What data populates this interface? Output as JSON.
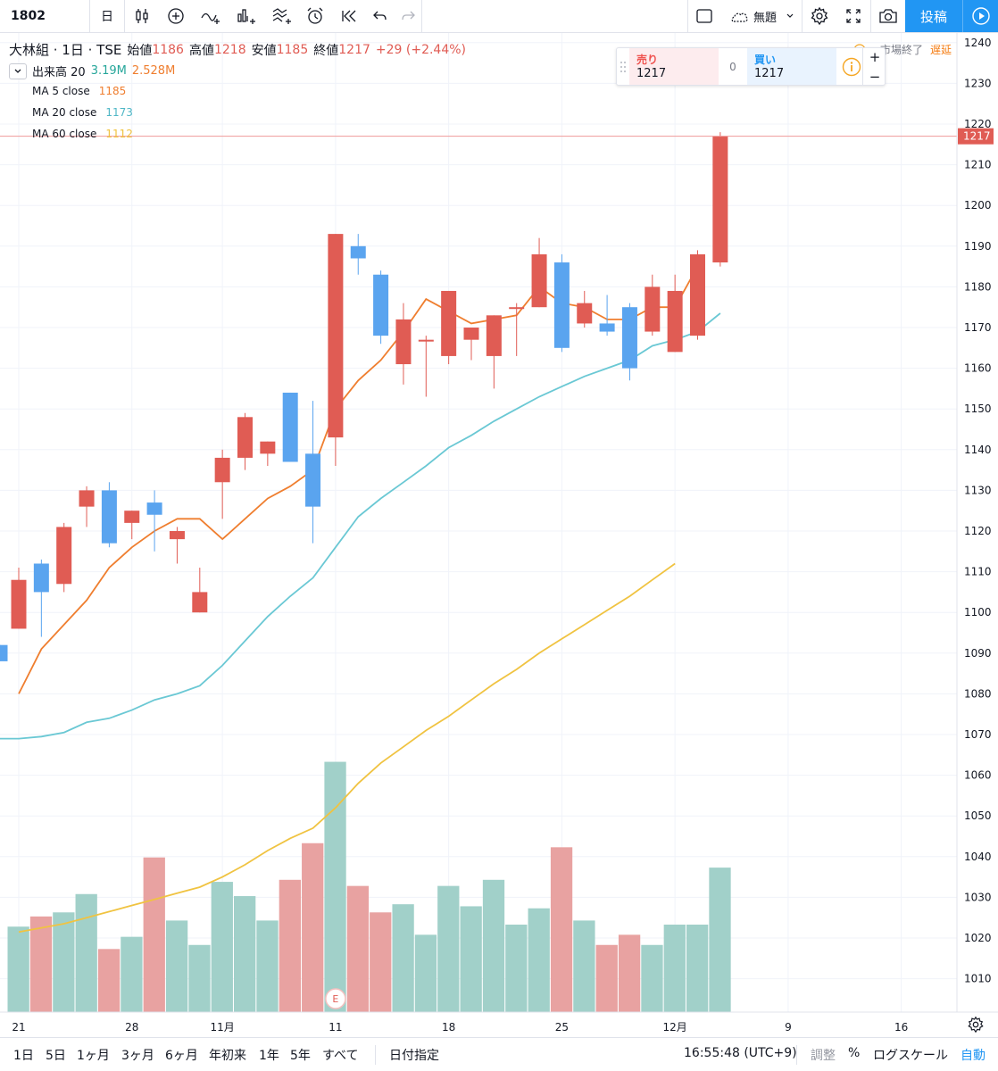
{
  "toolbar": {
    "symbol": "1802",
    "interval": "日",
    "cloud_label": "無題",
    "post_label": "投稿"
  },
  "legend": {
    "title": "大林組 · 1日 · TSE",
    "open_label": "始値",
    "open_value": "1186",
    "high_label": "高値",
    "high_value": "1218",
    "low_label": "安値",
    "low_value": "1185",
    "close_label": "終値",
    "close_value": "1217",
    "change": "+29 (+2.44%)",
    "volume_label": "出来高 20",
    "volume_value": "3.19M",
    "volume_ma": "2.528M",
    "ma5_label": "MA 5 close",
    "ma5_value": "1185",
    "ma20_label": "MA 20 close",
    "ma20_value": "1173",
    "ma60_label": "MA 60 close",
    "ma60_value": "1112"
  },
  "market_status": {
    "closed_label": "市場終了",
    "delayed_label": "遅延"
  },
  "trade": {
    "sell_label": "売り",
    "sell_value": "1217",
    "spread": "0",
    "buy_label": "買い",
    "buy_value": "1217",
    "plus": "+",
    "minus": "−"
  },
  "colors": {
    "up": "#e05c54",
    "down": "#5aa4ef",
    "ma5": "#ef7e2f",
    "ma20": "#6ac8d4",
    "ma60": "#f0c341",
    "vol_up": "#e8a2a1",
    "vol_down": "#a1d0c9"
  },
  "bottom": {
    "ranges": [
      "1日",
      "5日",
      "1ヶ月",
      "3ヶ月",
      "6ヶ月",
      "年初来",
      "1年",
      "5年",
      "すべて"
    ],
    "date_select": "日付指定",
    "time": "16:55:48 (UTC+9)",
    "adjust": "調整",
    "percent": "%",
    "log": "ログスケール",
    "auto": "自動"
  },
  "chart_data": {
    "type": "candlestick",
    "y_axis": {
      "ticks": [
        1010,
        1020,
        1030,
        1040,
        1050,
        1060,
        1070,
        1080,
        1090,
        1100,
        1110,
        1120,
        1130,
        1140,
        1150,
        1160,
        1170,
        1180,
        1190,
        1200,
        1210,
        1220,
        1230,
        1240
      ],
      "range": [
        1003,
        1244
      ],
      "last_price": 1217
    },
    "x_axis": {
      "ticks": [
        {
          "label": "21",
          "index": 0
        },
        {
          "label": "28",
          "index": 5
        },
        {
          "label": "11月",
          "index": 9
        },
        {
          "label": "11",
          "index": 14
        },
        {
          "label": "18",
          "index": 19
        },
        {
          "label": "25",
          "index": 24
        },
        {
          "label": "12月",
          "index": 29
        },
        {
          "label": "9",
          "index": 34
        },
        {
          "label": "16",
          "index": 39
        }
      ]
    },
    "candles": [
      {
        "o": 1096,
        "h": 1111,
        "l": 1096,
        "c": 1108
      },
      {
        "o": 1112,
        "h": 1113,
        "l": 1094,
        "c": 1105
      },
      {
        "o": 1107,
        "h": 1122,
        "l": 1105,
        "c": 1121
      },
      {
        "o": 1126,
        "h": 1131,
        "l": 1121,
        "c": 1130
      },
      {
        "o": 1130,
        "h": 1132,
        "l": 1116,
        "c": 1117
      },
      {
        "o": 1122,
        "h": 1125,
        "l": 1118,
        "c": 1125
      },
      {
        "o": 1127,
        "h": 1130,
        "l": 1115,
        "c": 1124
      },
      {
        "o": 1118,
        "h": 1121,
        "l": 1112,
        "c": 1120
      },
      {
        "o": 1100,
        "h": 1111,
        "l": 1100,
        "c": 1105
      },
      {
        "o": 1132,
        "h": 1140,
        "l": 1123,
        "c": 1138
      },
      {
        "o": 1138,
        "h": 1149,
        "l": 1135,
        "c": 1148
      },
      {
        "o": 1139,
        "h": 1142,
        "l": 1136,
        "c": 1142
      },
      {
        "o": 1154,
        "h": 1154,
        "l": 1137,
        "c": 1137
      },
      {
        "o": 1139,
        "h": 1152,
        "l": 1117,
        "c": 1126
      },
      {
        "o": 1143,
        "h": 1193,
        "l": 1136,
        "c": 1193
      },
      {
        "o": 1190,
        "h": 1193,
        "l": 1183,
        "c": 1187
      },
      {
        "o": 1183,
        "h": 1184,
        "l": 1166,
        "c": 1168
      },
      {
        "o": 1161,
        "h": 1176,
        "l": 1156,
        "c": 1172
      },
      {
        "o": 1167,
        "h": 1168,
        "l": 1153,
        "c": 1167
      },
      {
        "o": 1163,
        "h": 1179,
        "l": 1161,
        "c": 1179
      },
      {
        "o": 1167,
        "h": 1170,
        "l": 1162,
        "c": 1170
      },
      {
        "o": 1163,
        "h": 1173,
        "l": 1155,
        "c": 1173
      },
      {
        "o": 1175,
        "h": 1176,
        "l": 1163,
        "c": 1175
      },
      {
        "o": 1175,
        "h": 1192,
        "l": 1175,
        "c": 1188
      },
      {
        "o": 1186,
        "h": 1188,
        "l": 1164,
        "c": 1165
      },
      {
        "o": 1171,
        "h": 1179,
        "l": 1170,
        "c": 1176
      },
      {
        "o": 1171,
        "h": 1178,
        "l": 1168,
        "c": 1169
      },
      {
        "o": 1175,
        "h": 1176,
        "l": 1157,
        "c": 1160
      },
      {
        "o": 1169,
        "h": 1183,
        "l": 1168,
        "c": 1180
      },
      {
        "o": 1164,
        "h": 1183,
        "l": 1164,
        "c": 1179
      },
      {
        "o": 1168,
        "h": 1189,
        "l": 1167,
        "c": 1188
      },
      {
        "o": 1186,
        "h": 1218,
        "l": 1185,
        "c": 1217
      }
    ],
    "partial_left_candle": {
      "o": 1092,
      "h": 1092,
      "l": 1088,
      "c": 1088
    },
    "ma5": [
      1080,
      1091,
      1097,
      1103,
      1111,
      1116,
      1120,
      1123,
      1123,
      1118,
      1123,
      1128,
      1131,
      1135,
      1150,
      1157,
      1162,
      1169,
      1177,
      1174,
      1171,
      1172,
      1173,
      1180,
      1176,
      1175,
      1172,
      1172,
      1175,
      1175,
      1185
    ],
    "ma20": [
      1069,
      1069,
      1069.5,
      1070.5,
      1073,
      1074,
      1076,
      1078.5,
      1080,
      1082,
      1087,
      1093,
      1099,
      1104,
      1108.5,
      1116,
      1123.5,
      1128,
      1132,
      1136,
      1140.5,
      1143.5,
      1147,
      1150,
      1153,
      1155.5,
      1158,
      1160,
      1162,
      1165.5,
      1167,
      1169,
      1173.5
    ],
    "ma60": [
      1021.5,
      1022.5,
      1023.5,
      1025,
      1026.5,
      1028,
      1029.5,
      1031,
      1032.5,
      1035,
      1038,
      1041.5,
      1044.5,
      1047,
      1052,
      1058,
      1063,
      1067,
      1071,
      1074.5,
      1078.5,
      1082.5,
      1086,
      1090,
      1093.5,
      1097,
      1100.5,
      1104,
      1108,
      1112
    ],
    "volume": [
      {
        "v": 21,
        "up": false
      },
      {
        "v": 23.5,
        "up": true
      },
      {
        "v": 24.5,
        "up": false
      },
      {
        "v": 29,
        "up": false
      },
      {
        "v": 15.5,
        "up": true
      },
      {
        "v": 18.5,
        "up": false
      },
      {
        "v": 38,
        "up": true
      },
      {
        "v": 22.5,
        "up": false
      },
      {
        "v": 16.5,
        "up": false
      },
      {
        "v": 32,
        "up": false
      },
      {
        "v": 28.5,
        "up": false
      },
      {
        "v": 22.5,
        "up": false
      },
      {
        "v": 32.5,
        "up": true
      },
      {
        "v": 41.5,
        "up": true
      },
      {
        "v": 61.5,
        "up": false
      },
      {
        "v": 31,
        "up": true
      },
      {
        "v": 24.5,
        "up": true
      },
      {
        "v": 26.5,
        "up": false
      },
      {
        "v": 19,
        "up": false
      },
      {
        "v": 31,
        "up": false
      },
      {
        "v": 26,
        "up": false
      },
      {
        "v": 32.5,
        "up": false
      },
      {
        "v": 21.5,
        "up": false
      },
      {
        "v": 25.5,
        "up": false
      },
      {
        "v": 40.5,
        "up": true
      },
      {
        "v": 22.5,
        "up": false
      },
      {
        "v": 16.5,
        "up": true
      },
      {
        "v": 19,
        "up": true
      },
      {
        "v": 16.5,
        "up": false
      },
      {
        "v": 21.5,
        "up": false
      },
      {
        "v": 21.5,
        "up": false
      },
      {
        "v": 35.5,
        "up": false
      }
    ],
    "earnings_marker": {
      "label": "E",
      "index": 14
    }
  }
}
